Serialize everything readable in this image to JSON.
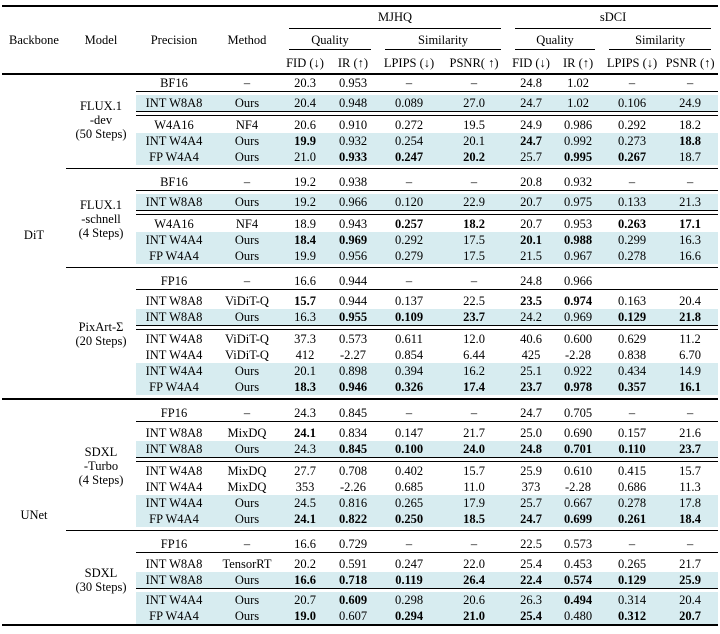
{
  "table": {
    "fixed_headers": [
      "Backbone",
      "Model",
      "Precision",
      "Method"
    ],
    "groups": [
      {
        "label": "MJHQ",
        "subgroups": [
          {
            "label": "Quality",
            "cols": [
              "FID (↓)",
              "IR (↑)"
            ]
          },
          {
            "label": "Similarity",
            "cols": [
              "LPIPS (↓)",
              "PSNR( ↑)"
            ]
          }
        ]
      },
      {
        "label": "sDCI",
        "subgroups": [
          {
            "label": "Quality",
            "cols": [
              "FID (↓)",
              "IR (↑)"
            ]
          },
          {
            "label": "Similarity",
            "cols": [
              "LPIPS (↓)",
              "PSNR (↑)"
            ]
          }
        ]
      }
    ],
    "colors": {
      "highlight": "#d7ecf0",
      "rule": "#000000",
      "text": "#000000"
    },
    "backbones": [
      {
        "label": "DiT",
        "models": [
          {
            "label": [
              "FLUX.1",
              "-dev",
              "(50 Steps)"
            ],
            "blocks": [
              {
                "rows": [
                  {
                    "p": "BF16",
                    "m": "–",
                    "v": [
                      "20.3",
                      "0.953",
                      "–",
                      "–",
                      "24.8",
                      "1.02",
                      "–",
                      "–"
                    ],
                    "b": [],
                    "hl": false
                  }
                ],
                "rule_after": "thin"
              },
              {
                "rows": [
                  {
                    "p": "INT W8A8",
                    "m": "Ours",
                    "v": [
                      "20.4",
                      "0.948",
                      "0.089",
                      "27.0",
                      "24.7",
                      "1.02",
                      "0.106",
                      "24.9"
                    ],
                    "b": [],
                    "hl": true
                  }
                ],
                "rule_after": "double"
              },
              {
                "rows": [
                  {
                    "p": "W4A16",
                    "m": "NF4",
                    "v": [
                      "20.6",
                      "0.910",
                      "0.272",
                      "19.5",
                      "24.9",
                      "0.986",
                      "0.292",
                      "18.2"
                    ],
                    "b": [],
                    "hl": false
                  },
                  {
                    "p": "INT W4A4",
                    "m": "Ours",
                    "v": [
                      "19.9",
                      "0.932",
                      "0.254",
                      "20.1",
                      "24.7",
                      "0.992",
                      "0.273",
                      "18.8"
                    ],
                    "b": [
                      0,
                      4,
                      7
                    ],
                    "hl": true
                  },
                  {
                    "p": "FP W4A4",
                    "m": "Ours",
                    "v": [
                      "21.0",
                      "0.933",
                      "0.247",
                      "20.2",
                      "25.7",
                      "0.995",
                      "0.267",
                      "18.7"
                    ],
                    "b": [
                      1,
                      2,
                      3,
                      5,
                      6
                    ],
                    "hl": true
                  }
                ],
                "rule_after": null
              }
            ]
          },
          {
            "label": [
              "FLUX.1",
              "-schnell",
              "(4 Steps)"
            ],
            "blocks": [
              {
                "rows": [
                  {
                    "p": "BF16",
                    "m": "–",
                    "v": [
                      "19.2",
                      "0.938",
                      "–",
                      "–",
                      "20.8",
                      "0.932",
                      "–",
                      "–"
                    ],
                    "b": [],
                    "hl": false
                  }
                ],
                "rule_after": "thin"
              },
              {
                "rows": [
                  {
                    "p": "INT W8A8",
                    "m": "Ours",
                    "v": [
                      "19.2",
                      "0.966",
                      "0.120",
                      "22.9",
                      "20.7",
                      "0.975",
                      "0.133",
                      "21.3"
                    ],
                    "b": [],
                    "hl": true
                  }
                ],
                "rule_after": "double"
              },
              {
                "rows": [
                  {
                    "p": "W4A16",
                    "m": "NF4",
                    "v": [
                      "18.9",
                      "0.943",
                      "0.257",
                      "18.2",
                      "20.7",
                      "0.953",
                      "0.263",
                      "17.1"
                    ],
                    "b": [
                      2,
                      3,
                      6,
                      7
                    ],
                    "hl": false
                  },
                  {
                    "p": "INT W4A4",
                    "m": "Ours",
                    "v": [
                      "18.4",
                      "0.969",
                      "0.292",
                      "17.5",
                      "20.1",
                      "0.988",
                      "0.299",
                      "16.3"
                    ],
                    "b": [
                      0,
                      1,
                      4,
                      5
                    ],
                    "hl": true
                  },
                  {
                    "p": "FP W4A4",
                    "m": "Ours",
                    "v": [
                      "19.9",
                      "0.956",
                      "0.279",
                      "17.5",
                      "21.5",
                      "0.967",
                      "0.278",
                      "16.6"
                    ],
                    "b": [],
                    "hl": true
                  }
                ],
                "rule_after": null
              }
            ]
          },
          {
            "label": [
              "PixArt-Σ",
              "(20 Steps)"
            ],
            "blocks": [
              {
                "rows": [
                  {
                    "p": "FP16",
                    "m": "–",
                    "v": [
                      "16.6",
                      "0.944",
                      "–",
                      "–",
                      "24.8",
                      "0.966",
                      "",
                      ""
                    ],
                    "b": [],
                    "hl": false
                  }
                ],
                "rule_after": "thin"
              },
              {
                "rows": [
                  {
                    "p": "INT W8A8",
                    "m": "ViDiT-Q",
                    "v": [
                      "15.7",
                      "0.944",
                      "0.137",
                      "22.5",
                      "23.5",
                      "0.974",
                      "0.163",
                      "20.4"
                    ],
                    "b": [
                      0,
                      4,
                      5
                    ],
                    "hl": false
                  },
                  {
                    "p": "INT W8A8",
                    "m": "Ours",
                    "v": [
                      "16.3",
                      "0.955",
                      "0.109",
                      "23.7",
                      "24.2",
                      "0.969",
                      "0.129",
                      "21.8"
                    ],
                    "b": [
                      1,
                      2,
                      3,
                      6,
                      7
                    ],
                    "hl": true
                  }
                ],
                "rule_after": "double"
              },
              {
                "rows": [
                  {
                    "p": "INT W4A8",
                    "m": "ViDiT-Q",
                    "v": [
                      "37.3",
                      "0.573",
                      "0.611",
                      "12.0",
                      "40.6",
                      "0.600",
                      "0.629",
                      "11.2"
                    ],
                    "b": [],
                    "hl": false
                  },
                  {
                    "p": "INT W4A4",
                    "m": "ViDiT-Q",
                    "v": [
                      "412",
                      "-2.27",
                      "0.854",
                      "6.44",
                      "425",
                      "-2.28",
                      "0.838",
                      "6.70"
                    ],
                    "b": [],
                    "hl": false
                  },
                  {
                    "p": "INT W4A4",
                    "m": "Ours",
                    "v": [
                      "20.1",
                      "0.898",
                      "0.394",
                      "16.2",
                      "25.1",
                      "0.922",
                      "0.434",
                      "14.9"
                    ],
                    "b": [],
                    "hl": true
                  },
                  {
                    "p": "FP W4A4",
                    "m": "Ours",
                    "v": [
                      "18.3",
                      "0.946",
                      "0.326",
                      "17.4",
                      "23.7",
                      "0.978",
                      "0.357",
                      "16.1"
                    ],
                    "b": [
                      0,
                      1,
                      2,
                      3,
                      4,
                      5,
                      6,
                      7
                    ],
                    "hl": true
                  }
                ],
                "rule_after": null
              }
            ]
          }
        ]
      },
      {
        "label": "UNet",
        "models": [
          {
            "label": [
              "SDXL",
              "-Turbo",
              "(4 Steps)"
            ],
            "blocks": [
              {
                "rows": [
                  {
                    "p": "FP16",
                    "m": "–",
                    "v": [
                      "24.3",
                      "0.845",
                      "–",
                      "–",
                      "24.7",
                      "0.705",
                      "–",
                      "–"
                    ],
                    "b": [],
                    "hl": false
                  }
                ],
                "rule_after": "thin"
              },
              {
                "rows": [
                  {
                    "p": "INT W8A8",
                    "m": "MixDQ",
                    "v": [
                      "24.1",
                      "0.834",
                      "0.147",
                      "21.7",
                      "25.0",
                      "0.690",
                      "0.157",
                      "21.6"
                    ],
                    "b": [
                      0
                    ],
                    "hl": false
                  },
                  {
                    "p": "INT W8A8",
                    "m": "Ours",
                    "v": [
                      "24.3",
                      "0.845",
                      "0.100",
                      "24.0",
                      "24.8",
                      "0.701",
                      "0.110",
                      "23.7"
                    ],
                    "b": [
                      1,
                      2,
                      3,
                      4,
                      5,
                      6,
                      7
                    ],
                    "hl": true
                  }
                ],
                "rule_after": "double"
              },
              {
                "rows": [
                  {
                    "p": "INT W4A8",
                    "m": "MixDQ",
                    "v": [
                      "27.7",
                      "0.708",
                      "0.402",
                      "15.7",
                      "25.9",
                      "0.610",
                      "0.415",
                      "15.7"
                    ],
                    "b": [],
                    "hl": false
                  },
                  {
                    "p": "INT W4A4",
                    "m": "MixDQ",
                    "v": [
                      "353",
                      "-2.26",
                      "0.685",
                      "11.0",
                      "373",
                      "-2.28",
                      "0.686",
                      "11.3"
                    ],
                    "b": [],
                    "hl": false
                  },
                  {
                    "p": "INT W4A4",
                    "m": "Ours",
                    "v": [
                      "24.5",
                      "0.816",
                      "0.265",
                      "17.9",
                      "25.7",
                      "0.667",
                      "0.278",
                      "17.8"
                    ],
                    "b": [],
                    "hl": true
                  },
                  {
                    "p": "FP W4A4",
                    "m": "Ours",
                    "v": [
                      "24.1",
                      "0.822",
                      "0.250",
                      "18.5",
                      "24.7",
                      "0.699",
                      "0.261",
                      "18.4"
                    ],
                    "b": [
                      0,
                      1,
                      2,
                      3,
                      4,
                      5,
                      6,
                      7
                    ],
                    "hl": true
                  }
                ],
                "rule_after": null
              }
            ]
          },
          {
            "label": [
              "SDXL",
              "(30 Steps)"
            ],
            "blocks": [
              {
                "rows": [
                  {
                    "p": "FP16",
                    "m": "–",
                    "v": [
                      "16.6",
                      "0.729",
                      "–",
                      "–",
                      "22.5",
                      "0.573",
                      "–",
                      "–"
                    ],
                    "b": [],
                    "hl": false
                  }
                ],
                "rule_after": "thin"
              },
              {
                "rows": [
                  {
                    "p": "INT W8A8",
                    "m": "TensorRT",
                    "v": [
                      "20.2",
                      "0.591",
                      "0.247",
                      "22.0",
                      "25.4",
                      "0.453",
                      "0.265",
                      "21.7"
                    ],
                    "b": [],
                    "hl": false
                  },
                  {
                    "p": "INT W8A8",
                    "m": "Ours",
                    "v": [
                      "16.6",
                      "0.718",
                      "0.119",
                      "26.4",
                      "22.4",
                      "0.574",
                      "0.129",
                      "25.9"
                    ],
                    "b": [
                      0,
                      1,
                      2,
                      3,
                      4,
                      5,
                      6,
                      7
                    ],
                    "hl": true
                  }
                ],
                "rule_after": "thin"
              },
              {
                "rows": [
                  {
                    "p": "INT W4A4",
                    "m": "Ours",
                    "v": [
                      "20.7",
                      "0.609",
                      "0.298",
                      "20.6",
                      "26.3",
                      "0.494",
                      "0.314",
                      "20.4"
                    ],
                    "b": [
                      1,
                      5
                    ],
                    "hl": true
                  },
                  {
                    "p": "FP W4A4",
                    "m": "Ours",
                    "v": [
                      "19.0",
                      "0.607",
                      "0.294",
                      "21.0",
                      "25.4",
                      "0.480",
                      "0.312",
                      "20.7"
                    ],
                    "b": [
                      0,
                      2,
                      3,
                      4,
                      6,
                      7
                    ],
                    "hl": true
                  }
                ],
                "rule_after": null
              }
            ]
          }
        ]
      }
    ]
  }
}
